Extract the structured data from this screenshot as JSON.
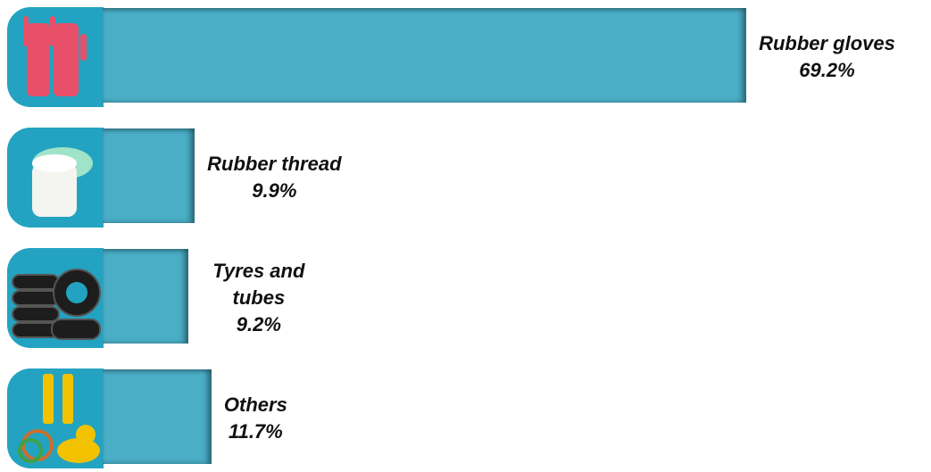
{
  "chart_data": {
    "type": "bar",
    "orientation": "horizontal",
    "categories": [
      "Rubber gloves",
      "Rubber thread",
      "Tyres and tubes",
      "Others"
    ],
    "values": [
      69.2,
      9.9,
      9.2,
      11.7
    ],
    "value_labels": [
      "69.2%",
      "9.9%",
      "9.2%",
      "11.7%"
    ],
    "color": "#4aaec6"
  }
}
